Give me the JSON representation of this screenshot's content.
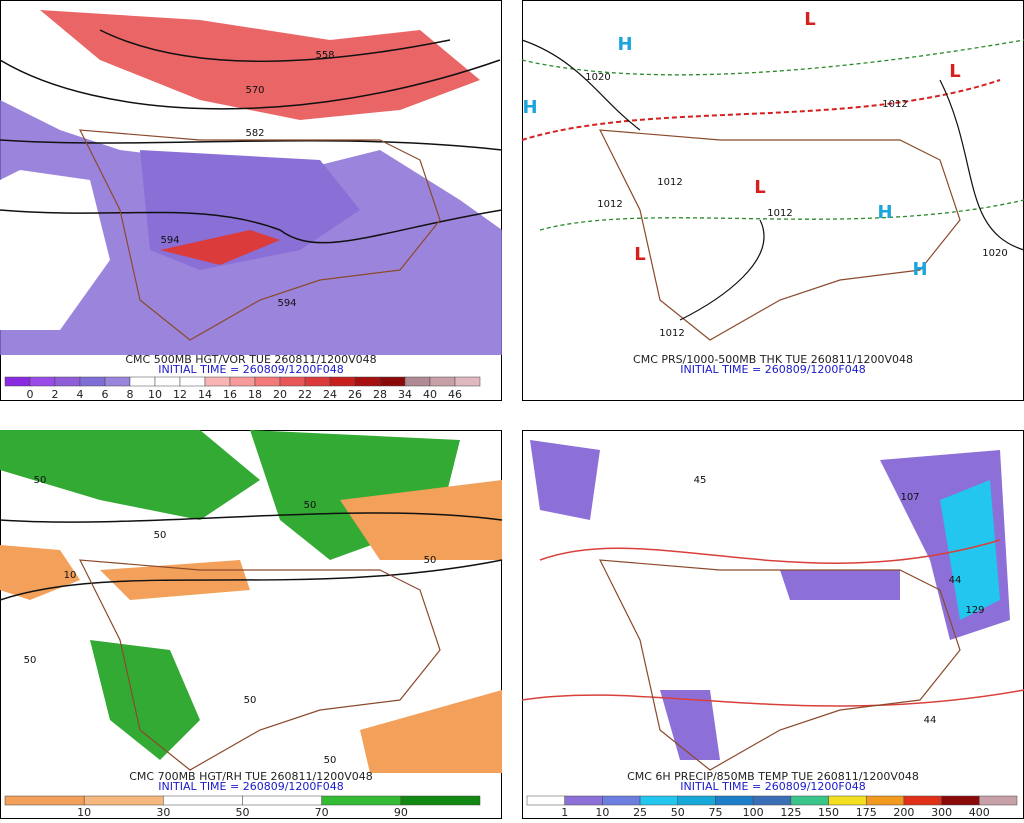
{
  "panels": [
    {
      "caption": "CMC 500MB HGT/VOR TUE 260811/1200V048",
      "initial": "INITIAL TIME = 260809/1200F048",
      "colorbar": {
        "labels": [
          "0",
          "2",
          "4",
          "6",
          "8",
          "10",
          "12",
          "14",
          "16",
          "18",
          "20",
          "22",
          "24",
          "26",
          "28",
          "34",
          "40",
          "46"
        ],
        "colors": [
          "#8a2be2",
          "#9b4be8",
          "#8f5ed8",
          "#7e6ed6",
          "#9a85dc",
          "#ffffff",
          "#ffffff",
          "#ffffff",
          "#f9b4b4",
          "#f79a9a",
          "#f27a7a",
          "#e85757",
          "#dc3b3b",
          "#c81e1e",
          "#a80f0f",
          "#8a0a0a",
          "#b08a92",
          "#c8a0a8",
          "#e0b8c0"
        ]
      },
      "map_labels": [
        "558",
        "570",
        "582",
        "594",
        "594"
      ]
    },
    {
      "caption": "CMC PRS/1000-500MB THK TUE 260811/1200V048",
      "initial": "INITIAL TIME = 260809/1200F048",
      "map_labels": [
        "1020",
        "1012",
        "1012",
        "1012",
        "1012",
        "1020",
        "1012",
        "H",
        "H",
        "H",
        "H",
        "L",
        "L",
        "L",
        "L"
      ]
    },
    {
      "caption": "CMC 700MB HGT/RH TUE 260811/1200V048",
      "initial": "INITIAL TIME = 260809/1200F048",
      "colorbar": {
        "labels": [
          "10",
          "30",
          "50",
          "70",
          "90"
        ],
        "colors": [
          "#f2a05a",
          "#f7b880",
          "#ffffff",
          "#ffffff",
          "#33bb33",
          "#118811"
        ]
      },
      "map_labels": [
        "50",
        "50",
        "50",
        "50",
        "50",
        "50",
        "50",
        "10"
      ]
    },
    {
      "caption": "CMC 6H PRECIP/850MB TEMP TUE 260811/1200V048",
      "initial": "INITIAL TIME = 260809/1200F048",
      "colorbar": {
        "labels": [
          "1",
          "10",
          "25",
          "50",
          "75",
          "100",
          "125",
          "150",
          "175",
          "200",
          "300",
          "400"
        ],
        "colors": [
          "#ffffff",
          "#8d6fd8",
          "#6c7ee0",
          "#22c6ee",
          "#16a8d8",
          "#1d7fc9",
          "#3a6fb8",
          "#39c489",
          "#f2e020",
          "#f29a20",
          "#e0301a",
          "#8a0a0a",
          "#c8a0a8"
        ]
      },
      "map_labels": [
        "107",
        "44",
        "129",
        "45",
        "44"
      ]
    }
  ]
}
